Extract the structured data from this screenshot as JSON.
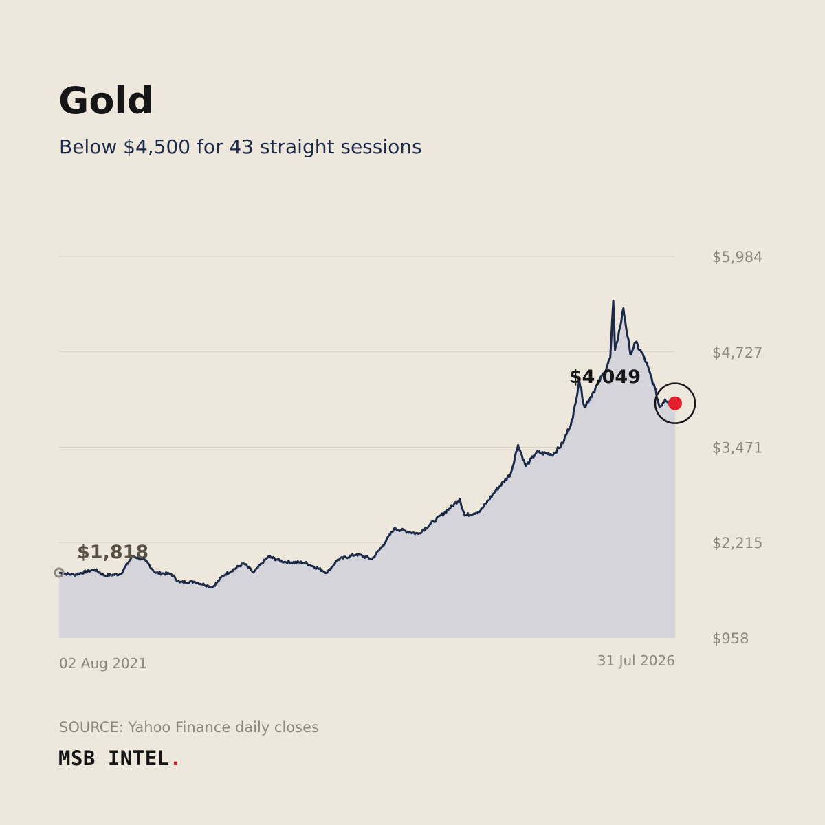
{
  "header": {
    "title": "Gold",
    "subtitle": "Below $4,500 for 43 straight sessions"
  },
  "footer": {
    "source": "SOURCE: Yahoo Finance daily closes",
    "brand": "MSB INTEL",
    "brand_dot": "."
  },
  "colors": {
    "background": "#EEE7DB",
    "line": "#1C2A4A",
    "fill": "#D4D4DA",
    "grid": "#D9D2C6",
    "tick": "#8E877B",
    "end_marker": "#E21F2B",
    "start_marker": "#8E877B",
    "start_label": "#5A5344",
    "end_label": "#161616"
  },
  "chart_data": {
    "type": "area",
    "title": "Gold",
    "subtitle": "Below $4,500 for 43 straight sessions",
    "xlabel": "",
    "ylabel": "",
    "ylim": [
      958,
      5984
    ],
    "yticks": [
      958,
      2215,
      3471,
      4727,
      5984
    ],
    "ytick_labels": [
      "$958",
      "$2,215",
      "$3,471",
      "$4,727",
      "$5,984"
    ],
    "xtick_labels": [
      "02 Aug 2021",
      "31 Jul 2026"
    ],
    "x_range": [
      "2021-08-02",
      "2026-07-31"
    ],
    "grid": "horizontal",
    "legend": "none",
    "series": [
      {
        "values": [
          [
            "2021-08-02",
            1818
          ],
          [
            "2021-09-15",
            1790
          ],
          [
            "2021-11-15",
            1860
          ],
          [
            "2021-12-15",
            1780
          ],
          [
            "2022-01-31",
            1800
          ],
          [
            "2022-03-08",
            2040
          ],
          [
            "2022-04-15",
            1975
          ],
          [
            "2022-05-15",
            1815
          ],
          [
            "2022-06-30",
            1800
          ],
          [
            "2022-07-25",
            1690
          ],
          [
            "2022-09-05",
            1700
          ],
          [
            "2022-10-31",
            1630
          ],
          [
            "2022-12-01",
            1780
          ],
          [
            "2023-01-31",
            1940
          ],
          [
            "2023-03-01",
            1820
          ],
          [
            "2023-04-13",
            2030
          ],
          [
            "2023-05-31",
            1960
          ],
          [
            "2023-07-31",
            1950
          ],
          [
            "2023-10-05",
            1820
          ],
          [
            "2023-11-05",
            1990
          ],
          [
            "2023-12-31",
            2060
          ],
          [
            "2024-02-15",
            2000
          ],
          [
            "2024-03-15",
            2160
          ],
          [
            "2024-04-20",
            2400
          ],
          [
            "2024-06-30",
            2330
          ],
          [
            "2024-08-15",
            2490
          ],
          [
            "2024-09-30",
            2660
          ],
          [
            "2024-10-31",
            2790
          ],
          [
            "2024-11-15",
            2570
          ],
          [
            "2024-12-31",
            2630
          ],
          [
            "2025-02-15",
            2900
          ],
          [
            "2025-03-31",
            3120
          ],
          [
            "2025-04-22",
            3500
          ],
          [
            "2025-05-15",
            3220
          ],
          [
            "2025-06-15",
            3400
          ],
          [
            "2025-08-05",
            3380
          ],
          [
            "2025-09-01",
            3520
          ],
          [
            "2025-10-01",
            3850
          ],
          [
            "2025-10-20",
            4350
          ],
          [
            "2025-11-05",
            4000
          ],
          [
            "2025-12-01",
            4200
          ],
          [
            "2026-01-01",
            4450
          ],
          [
            "2026-01-20",
            4650
          ],
          [
            "2026-01-29",
            5400
          ],
          [
            "2026-02-03",
            4750
          ],
          [
            "2026-02-18",
            5050
          ],
          [
            "2026-02-28",
            5300
          ],
          [
            "2026-03-20",
            4700
          ],
          [
            "2026-04-05",
            4850
          ],
          [
            "2026-05-01",
            4650
          ],
          [
            "2026-06-01",
            4250
          ],
          [
            "2026-06-15",
            4000
          ],
          [
            "2026-07-01",
            4100
          ],
          [
            "2026-07-31",
            4049
          ]
        ]
      }
    ],
    "annotations": [
      {
        "label": "$1,818",
        "date": "2021-08-02",
        "value": 1818
      },
      {
        "label": "$4,049",
        "date": "2026-07-31",
        "value": 4049
      }
    ]
  }
}
